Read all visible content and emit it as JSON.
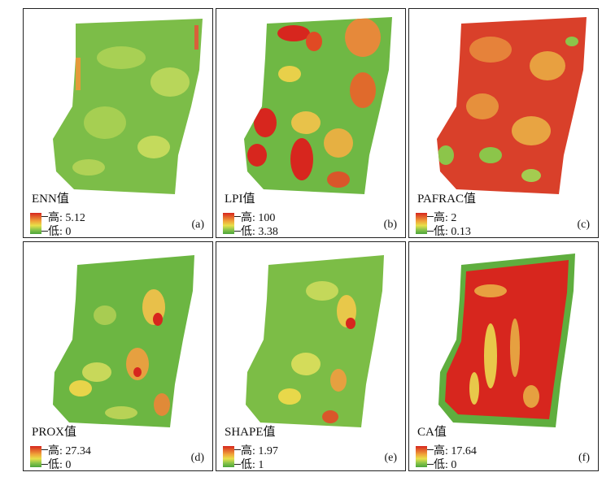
{
  "legend_colors": {
    "high": "#d7261e",
    "mid": "#e8e04a",
    "low": "#4aa43a"
  },
  "panels": [
    {
      "id": "a",
      "title": "ENN值",
      "high": "高: 5.12",
      "low": "低: 0",
      "letter": "(a)"
    },
    {
      "id": "b",
      "title": "LPI值",
      "high": "高: 100",
      "low": "低: 3.38",
      "letter": "(b)"
    },
    {
      "id": "c",
      "title": "PAFRAC值",
      "high": "高: 2",
      "low": "低: 0.13",
      "letter": "(c)"
    },
    {
      "id": "d",
      "title": "PROX值",
      "high": "高: 27.34",
      "low": "低: 0",
      "letter": "(d)"
    },
    {
      "id": "e",
      "title": "SHAPE值",
      "high": "高: 1.97",
      "low": "低: 1",
      "letter": "(e)"
    },
    {
      "id": "f",
      "title": "CA值",
      "high": "高: 17.64",
      "low": "低: 0",
      "letter": "(f)"
    }
  ]
}
